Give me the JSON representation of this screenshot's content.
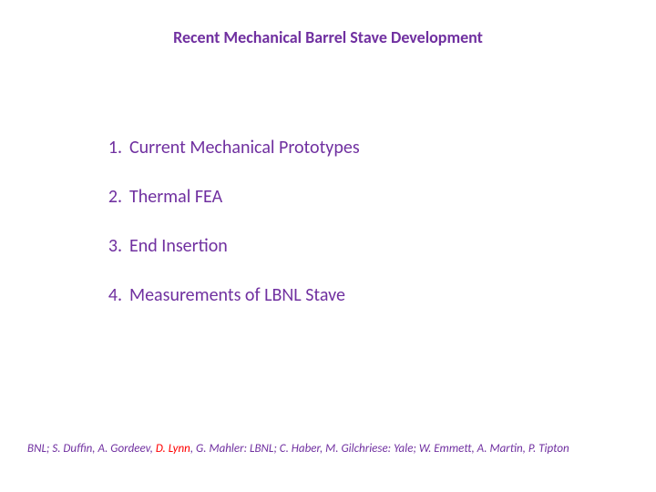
{
  "title": {
    "text": "Recent Mechanical Barrel Stave Development",
    "color": "#7030a0",
    "fontsize": 18
  },
  "list": {
    "color": "#7030a0",
    "fontsize": 20,
    "items": [
      {
        "num": "1.",
        "label": "Current Mechanical Prototypes"
      },
      {
        "num": "2.",
        "label": "Thermal FEA"
      },
      {
        "num": "3.",
        "label": "End Insertion"
      },
      {
        "num": "4.",
        "label": "Measurements of LBNL Stave"
      }
    ]
  },
  "footer": {
    "fontsize": 13,
    "segments": [
      {
        "text": "BNL; S. Duffin, A. Gordeev, ",
        "color": "#7030a0"
      },
      {
        "text": "D. Lynn",
        "color": "#ff0000"
      },
      {
        "text": ", G. Mahler: LBNL; C. Haber, M. Gilchriese: Yale; W. Emmett, A. Martin, P. Tipton",
        "color": "#7030a0"
      }
    ]
  }
}
